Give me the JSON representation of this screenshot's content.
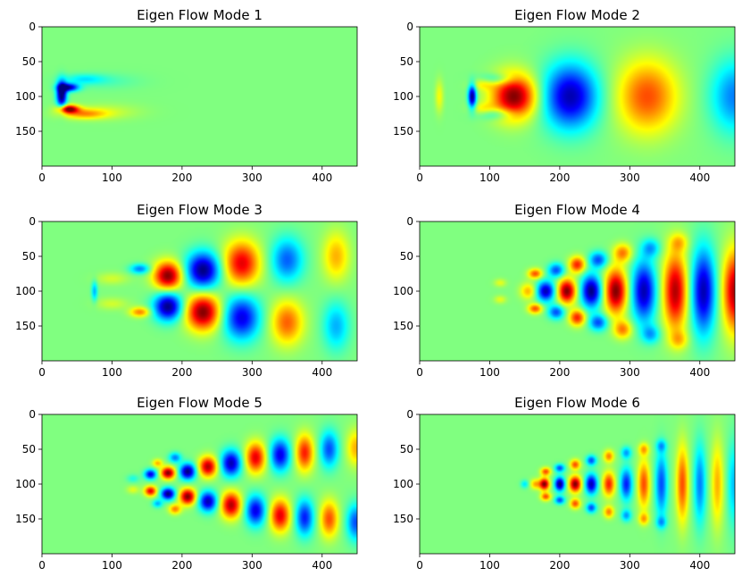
{
  "figure": {
    "background": "#ffffff"
  },
  "chart_data": [
    {
      "type": "heatmap",
      "title": "Eigen Flow Mode 1",
      "colormap": "jet",
      "xlim": [
        0,
        450
      ],
      "ylim": [
        200,
        0
      ],
      "xticks": [
        0,
        100,
        200,
        300,
        400
      ],
      "yticks": [
        0,
        50,
        100,
        150
      ],
      "xlabel": "",
      "ylabel": "",
      "background_level": 0.5,
      "features": [
        {
          "x": 28,
          "y": 97,
          "sx": 5,
          "sy": 13,
          "value": -0.55
        },
        {
          "x": 38,
          "y": 87,
          "sx": 10,
          "sy": 4,
          "value": -0.45
        },
        {
          "x": 38,
          "y": 118,
          "sx": 10,
          "sy": 4,
          "value": 0.5
        },
        {
          "x": 60,
          "y": 75,
          "sx": 20,
          "sy": 5,
          "value": -0.12
        },
        {
          "x": 60,
          "y": 125,
          "sx": 22,
          "sy": 5,
          "value": 0.2
        },
        {
          "x": 90,
          "y": 78,
          "sx": 35,
          "sy": 8,
          "value": -0.05
        },
        {
          "x": 90,
          "y": 122,
          "sx": 35,
          "sy": 8,
          "value": 0.07
        }
      ]
    },
    {
      "type": "heatmap",
      "title": "Eigen Flow Mode 2",
      "colormap": "jet",
      "xlim": [
        0,
        450
      ],
      "ylim": [
        200,
        0
      ],
      "xticks": [
        0,
        100,
        200,
        300,
        400
      ],
      "yticks": [
        0,
        50,
        100,
        150
      ],
      "xlabel": "",
      "ylabel": "",
      "background_level": 0.5,
      "features": [
        {
          "x": 28,
          "y": 100,
          "sx": 4,
          "sy": 16,
          "value": 0.12
        },
        {
          "x": 75,
          "y": 100,
          "sx": 4,
          "sy": 12,
          "value": -0.5
        },
        {
          "x": 90,
          "y": 82,
          "sx": 12,
          "sy": 6,
          "value": 0.12
        },
        {
          "x": 90,
          "y": 118,
          "sx": 12,
          "sy": 6,
          "value": 0.12
        },
        {
          "x": 110,
          "y": 75,
          "sx": 18,
          "sy": 6,
          "value": -0.15
        },
        {
          "x": 110,
          "y": 125,
          "sx": 18,
          "sy": 6,
          "value": -0.15
        },
        {
          "x": 135,
          "y": 100,
          "sx": 22,
          "sy": 22,
          "value": 0.5
        },
        {
          "x": 215,
          "y": 100,
          "sx": 27,
          "sy": 32,
          "value": -0.45
        },
        {
          "x": 325,
          "y": 100,
          "sx": 30,
          "sy": 36,
          "value": 0.3
        },
        {
          "x": 450,
          "y": 100,
          "sx": 24,
          "sy": 36,
          "value": -0.25
        }
      ]
    },
    {
      "type": "heatmap",
      "title": "Eigen Flow Mode 3",
      "colormap": "jet",
      "xlim": [
        0,
        450
      ],
      "ylim": [
        200,
        0
      ],
      "xticks": [
        0,
        100,
        200,
        300,
        400
      ],
      "yticks": [
        0,
        50,
        100,
        150
      ],
      "xlabel": "",
      "ylabel": "",
      "background_level": 0.5,
      "features": [
        {
          "x": 75,
          "y": 100,
          "sx": 3,
          "sy": 10,
          "value": -0.2
        },
        {
          "x": 100,
          "y": 82,
          "sx": 16,
          "sy": 6,
          "value": 0.08
        },
        {
          "x": 100,
          "y": 118,
          "sx": 16,
          "sy": 6,
          "value": 0.08
        },
        {
          "x": 140,
          "y": 68,
          "sx": 10,
          "sy": 5,
          "value": -0.25
        },
        {
          "x": 140,
          "y": 130,
          "sx": 10,
          "sy": 5,
          "value": 0.25
        },
        {
          "x": 180,
          "y": 78,
          "sx": 14,
          "sy": 14,
          "value": 0.5
        },
        {
          "x": 180,
          "y": 122,
          "sx": 14,
          "sy": 14,
          "value": -0.5
        },
        {
          "x": 230,
          "y": 70,
          "sx": 17,
          "sy": 18,
          "value": -0.5
        },
        {
          "x": 230,
          "y": 130,
          "sx": 17,
          "sy": 18,
          "value": 0.5
        },
        {
          "x": 285,
          "y": 60,
          "sx": 18,
          "sy": 22,
          "value": 0.4
        },
        {
          "x": 285,
          "y": 138,
          "sx": 18,
          "sy": 22,
          "value": -0.4
        },
        {
          "x": 350,
          "y": 55,
          "sx": 16,
          "sy": 22,
          "value": -0.28
        },
        {
          "x": 350,
          "y": 145,
          "sx": 16,
          "sy": 22,
          "value": 0.28
        },
        {
          "x": 420,
          "y": 50,
          "sx": 13,
          "sy": 24,
          "value": 0.2
        },
        {
          "x": 420,
          "y": 150,
          "sx": 13,
          "sy": 24,
          "value": -0.2
        }
      ]
    },
    {
      "type": "heatmap",
      "title": "Eigen Flow Mode 4",
      "colormap": "jet",
      "xlim": [
        0,
        450
      ],
      "ylim": [
        200,
        0
      ],
      "xticks": [
        0,
        100,
        200,
        300,
        400
      ],
      "yticks": [
        0,
        50,
        100,
        150
      ],
      "xlabel": "",
      "ylabel": "",
      "background_level": 0.5,
      "features": [
        {
          "x": 115,
          "y": 88,
          "sx": 6,
          "sy": 4,
          "value": 0.1
        },
        {
          "x": 115,
          "y": 112,
          "sx": 6,
          "sy": 4,
          "value": 0.1
        },
        {
          "x": 155,
          "y": 100,
          "sx": 8,
          "sy": 8,
          "value": 0.2
        },
        {
          "x": 165,
          "y": 75,
          "sx": 7,
          "sy": 5,
          "value": 0.3
        },
        {
          "x": 165,
          "y": 125,
          "sx": 7,
          "sy": 5,
          "value": 0.3
        },
        {
          "x": 180,
          "y": 100,
          "sx": 9,
          "sy": 10,
          "value": -0.45
        },
        {
          "x": 195,
          "y": 70,
          "sx": 8,
          "sy": 7,
          "value": -0.3
        },
        {
          "x": 195,
          "y": 130,
          "sx": 8,
          "sy": 7,
          "value": -0.3
        },
        {
          "x": 210,
          "y": 100,
          "sx": 9,
          "sy": 12,
          "value": 0.5
        },
        {
          "x": 225,
          "y": 62,
          "sx": 8,
          "sy": 8,
          "value": 0.35
        },
        {
          "x": 225,
          "y": 138,
          "sx": 8,
          "sy": 8,
          "value": 0.35
        },
        {
          "x": 245,
          "y": 100,
          "sx": 10,
          "sy": 16,
          "value": -0.5
        },
        {
          "x": 255,
          "y": 55,
          "sx": 9,
          "sy": 8,
          "value": -0.3
        },
        {
          "x": 255,
          "y": 145,
          "sx": 9,
          "sy": 8,
          "value": -0.3
        },
        {
          "x": 280,
          "y": 100,
          "sx": 11,
          "sy": 22,
          "value": 0.5
        },
        {
          "x": 290,
          "y": 45,
          "sx": 9,
          "sy": 9,
          "value": 0.25
        },
        {
          "x": 290,
          "y": 155,
          "sx": 9,
          "sy": 9,
          "value": 0.25
        },
        {
          "x": 320,
          "y": 100,
          "sx": 12,
          "sy": 30,
          "value": -0.45
        },
        {
          "x": 330,
          "y": 38,
          "sx": 9,
          "sy": 9,
          "value": -0.2
        },
        {
          "x": 330,
          "y": 162,
          "sx": 9,
          "sy": 9,
          "value": -0.2
        },
        {
          "x": 365,
          "y": 100,
          "sx": 12,
          "sy": 38,
          "value": 0.45
        },
        {
          "x": 370,
          "y": 30,
          "sx": 9,
          "sy": 9,
          "value": 0.15
        },
        {
          "x": 370,
          "y": 170,
          "sx": 9,
          "sy": 9,
          "value": 0.15
        },
        {
          "x": 405,
          "y": 100,
          "sx": 12,
          "sy": 42,
          "value": -0.45
        },
        {
          "x": 450,
          "y": 100,
          "sx": 12,
          "sy": 40,
          "value": 0.45
        }
      ]
    },
    {
      "type": "heatmap",
      "title": "Eigen Flow Mode 5",
      "colormap": "jet",
      "xlim": [
        0,
        450
      ],
      "ylim": [
        200,
        0
      ],
      "xticks": [
        0,
        100,
        200,
        300,
        400
      ],
      "yticks": [
        0,
        50,
        100,
        150
      ],
      "xlabel": "",
      "ylabel": "",
      "background_level": 0.5,
      "features": [
        {
          "x": 130,
          "y": 92,
          "sx": 6,
          "sy": 4,
          "value": -0.1
        },
        {
          "x": 130,
          "y": 108,
          "sx": 6,
          "sy": 4,
          "value": 0.1
        },
        {
          "x": 155,
          "y": 86,
          "sx": 6,
          "sy": 5,
          "value": -0.4
        },
        {
          "x": 155,
          "y": 110,
          "sx": 6,
          "sy": 5,
          "value": 0.4
        },
        {
          "x": 165,
          "y": 70,
          "sx": 5,
          "sy": 4,
          "value": 0.2
        },
        {
          "x": 165,
          "y": 128,
          "sx": 5,
          "sy": 4,
          "value": -0.2
        },
        {
          "x": 180,
          "y": 84,
          "sx": 7,
          "sy": 6,
          "value": 0.5
        },
        {
          "x": 180,
          "y": 114,
          "sx": 7,
          "sy": 6,
          "value": -0.5
        },
        {
          "x": 190,
          "y": 62,
          "sx": 6,
          "sy": 5,
          "value": -0.25
        },
        {
          "x": 190,
          "y": 136,
          "sx": 6,
          "sy": 5,
          "value": 0.25
        },
        {
          "x": 208,
          "y": 82,
          "sx": 8,
          "sy": 8,
          "value": -0.5
        },
        {
          "x": 208,
          "y": 118,
          "sx": 8,
          "sy": 8,
          "value": 0.5
        },
        {
          "x": 237,
          "y": 75,
          "sx": 9,
          "sy": 10,
          "value": 0.45
        },
        {
          "x": 237,
          "y": 125,
          "sx": 9,
          "sy": 10,
          "value": -0.45
        },
        {
          "x": 270,
          "y": 70,
          "sx": 10,
          "sy": 13,
          "value": -0.45
        },
        {
          "x": 270,
          "y": 130,
          "sx": 10,
          "sy": 13,
          "value": 0.45
        },
        {
          "x": 305,
          "y": 62,
          "sx": 10,
          "sy": 15,
          "value": 0.4
        },
        {
          "x": 305,
          "y": 138,
          "sx": 10,
          "sy": 15,
          "value": -0.4
        },
        {
          "x": 340,
          "y": 58,
          "sx": 10,
          "sy": 16,
          "value": -0.4
        },
        {
          "x": 340,
          "y": 145,
          "sx": 10,
          "sy": 16,
          "value": 0.4
        },
        {
          "x": 375,
          "y": 55,
          "sx": 9,
          "sy": 18,
          "value": 0.35
        },
        {
          "x": 375,
          "y": 148,
          "sx": 9,
          "sy": 18,
          "value": -0.35
        },
        {
          "x": 410,
          "y": 50,
          "sx": 9,
          "sy": 18,
          "value": -0.3
        },
        {
          "x": 410,
          "y": 150,
          "sx": 9,
          "sy": 18,
          "value": 0.3
        },
        {
          "x": 448,
          "y": 48,
          "sx": 9,
          "sy": 18,
          "value": 0.2
        },
        {
          "x": 448,
          "y": 155,
          "sx": 9,
          "sy": 18,
          "value": -0.3
        }
      ]
    },
    {
      "type": "heatmap",
      "title": "Eigen Flow Mode 6",
      "colormap": "jet",
      "xlim": [
        0,
        450
      ],
      "ylim": [
        200,
        0
      ],
      "xticks": [
        0,
        100,
        200,
        300,
        400
      ],
      "yticks": [
        0,
        50,
        100,
        150
      ],
      "xlabel": "",
      "ylabel": "",
      "background_level": 0.5,
      "features": [
        {
          "x": 150,
          "y": 100,
          "sx": 4,
          "sy": 4,
          "value": -0.15
        },
        {
          "x": 165,
          "y": 100,
          "sx": 5,
          "sy": 5,
          "value": 0.2
        },
        {
          "x": 178,
          "y": 100,
          "sx": 5,
          "sy": 6,
          "value": 0.5
        },
        {
          "x": 180,
          "y": 82,
          "sx": 5,
          "sy": 4,
          "value": 0.3
        },
        {
          "x": 180,
          "y": 118,
          "sx": 5,
          "sy": 4,
          "value": 0.3
        },
        {
          "x": 200,
          "y": 100,
          "sx": 5,
          "sy": 7,
          "value": -0.5
        },
        {
          "x": 200,
          "y": 77,
          "sx": 5,
          "sy": 4,
          "value": -0.3
        },
        {
          "x": 200,
          "y": 123,
          "sx": 5,
          "sy": 4,
          "value": -0.3
        },
        {
          "x": 222,
          "y": 100,
          "sx": 6,
          "sy": 8,
          "value": 0.5
        },
        {
          "x": 222,
          "y": 72,
          "sx": 5,
          "sy": 5,
          "value": 0.3
        },
        {
          "x": 222,
          "y": 128,
          "sx": 5,
          "sy": 5,
          "value": 0.3
        },
        {
          "x": 245,
          "y": 100,
          "sx": 6,
          "sy": 10,
          "value": -0.45
        },
        {
          "x": 245,
          "y": 66,
          "sx": 5,
          "sy": 5,
          "value": -0.3
        },
        {
          "x": 245,
          "y": 134,
          "sx": 5,
          "sy": 5,
          "value": -0.3
        },
        {
          "x": 270,
          "y": 100,
          "sx": 6,
          "sy": 12,
          "value": 0.35
        },
        {
          "x": 270,
          "y": 60,
          "sx": 5,
          "sy": 6,
          "value": 0.25
        },
        {
          "x": 270,
          "y": 140,
          "sx": 5,
          "sy": 6,
          "value": 0.25
        },
        {
          "x": 295,
          "y": 100,
          "sx": 6,
          "sy": 16,
          "value": -0.35
        },
        {
          "x": 295,
          "y": 55,
          "sx": 5,
          "sy": 6,
          "value": -0.22
        },
        {
          "x": 295,
          "y": 145,
          "sx": 5,
          "sy": 6,
          "value": -0.22
        },
        {
          "x": 320,
          "y": 100,
          "sx": 6,
          "sy": 24,
          "value": 0.3
        },
        {
          "x": 320,
          "y": 50,
          "sx": 5,
          "sy": 6,
          "value": 0.2
        },
        {
          "x": 320,
          "y": 150,
          "sx": 5,
          "sy": 6,
          "value": 0.2
        },
        {
          "x": 345,
          "y": 100,
          "sx": 6,
          "sy": 32,
          "value": -0.3
        },
        {
          "x": 345,
          "y": 45,
          "sx": 5,
          "sy": 6,
          "value": -0.18
        },
        {
          "x": 345,
          "y": 155,
          "sx": 5,
          "sy": 6,
          "value": -0.18
        },
        {
          "x": 375,
          "y": 100,
          "sx": 6,
          "sy": 38,
          "value": 0.3
        },
        {
          "x": 400,
          "y": 100,
          "sx": 6,
          "sy": 40,
          "value": -0.25
        },
        {
          "x": 425,
          "y": 100,
          "sx": 6,
          "sy": 42,
          "value": 0.2
        },
        {
          "x": 448,
          "y": 100,
          "sx": 6,
          "sy": 42,
          "value": -0.18
        }
      ]
    }
  ]
}
